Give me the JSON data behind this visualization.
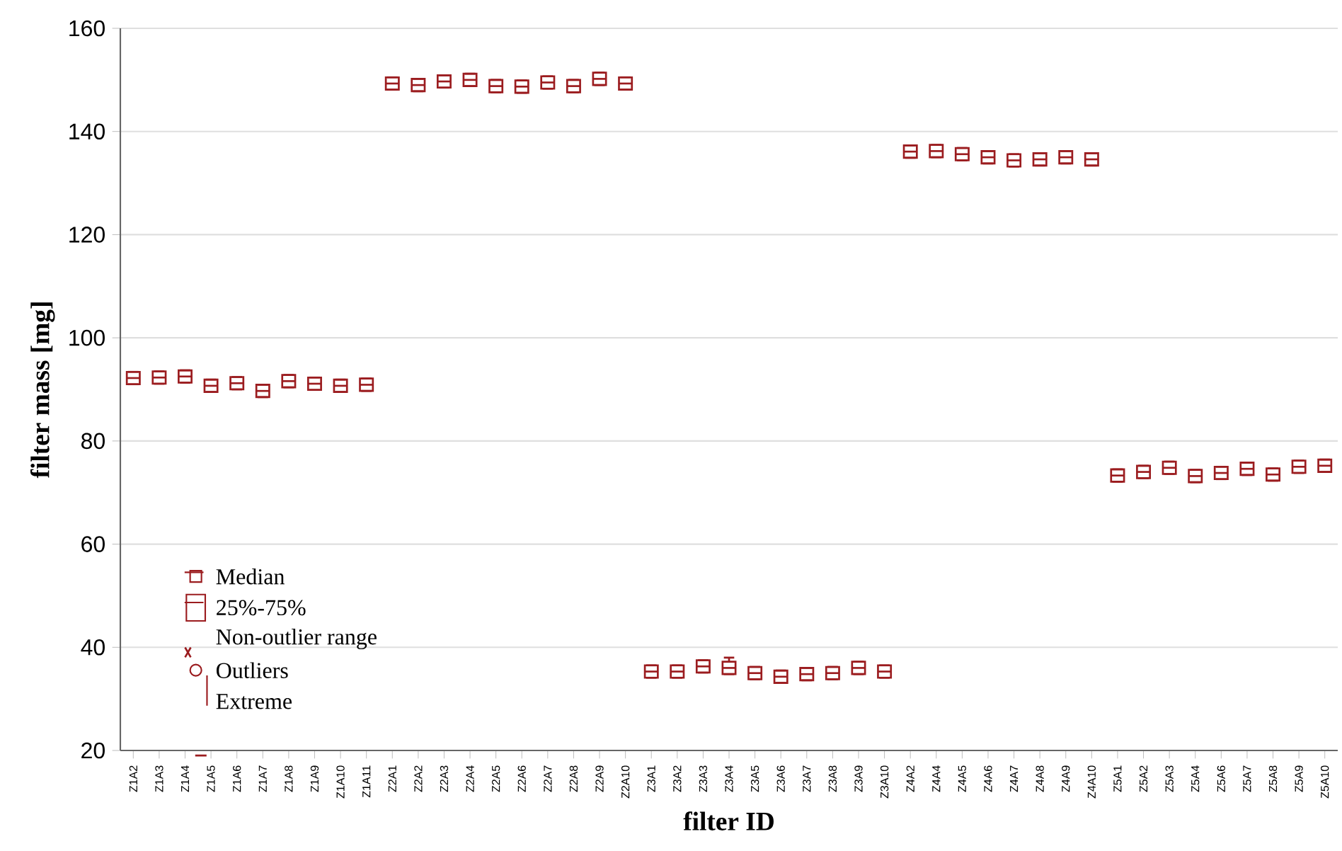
{
  "chart_data": {
    "type": "box",
    "xlabel": "filter ID",
    "ylabel": "filter mass [mg]",
    "categories": [
      "Z1A2",
      "Z1A3",
      "Z1A4",
      "Z1A5",
      "Z1A6",
      "Z1A7",
      "Z1A8",
      "Z1A9",
      "Z1A10",
      "Z1A11",
      "Z2A1",
      "Z2A2",
      "Z2A3",
      "Z2A4",
      "Z2A5",
      "Z2A6",
      "Z2A7",
      "Z2A8",
      "Z2A9",
      "Z2A10",
      "Z3A1",
      "Z3A2",
      "Z3A3",
      "Z3A4",
      "Z3A5",
      "Z3A6",
      "Z3A7",
      "Z3A8",
      "Z3A9",
      "Z3A10",
      "Z4A2",
      "Z4A4",
      "Z4A5",
      "Z4A6",
      "Z4A7",
      "Z4A8",
      "Z4A9",
      "Z4A10",
      "Z5A1",
      "Z5A2",
      "Z5A3",
      "Z5A4",
      "Z5A6",
      "Z5A7",
      "Z5A8",
      "Z5A9",
      "Z5A10"
    ],
    "ylim": [
      20,
      160
    ],
    "yticks": [
      20,
      40,
      60,
      80,
      100,
      120,
      140,
      160
    ],
    "grid": "y",
    "annotations": [
      "Median",
      "25%-75%",
      "Non-outlier range",
      "Outliers",
      "Extreme"
    ],
    "series": [
      {
        "color": "#9b1c1f",
        "boxes": [
          {
            "low": 91.0,
            "q1": 91.0,
            "median": 92.2,
            "q3": 93.4,
            "high": 93.4
          },
          {
            "low": 91.1,
            "q1": 91.1,
            "median": 92.3,
            "q3": 93.5,
            "high": 93.5
          },
          {
            "low": 91.3,
            "q1": 91.3,
            "median": 92.5,
            "q3": 93.7,
            "high": 93.7
          },
          {
            "low": 89.5,
            "q1": 89.5,
            "median": 90.7,
            "q3": 91.9,
            "high": 91.9
          },
          {
            "low": 90.0,
            "q1": 90.0,
            "median": 91.2,
            "q3": 92.4,
            "high": 92.4
          },
          {
            "low": 88.5,
            "q1": 88.5,
            "median": 89.7,
            "q3": 90.9,
            "high": 90.9
          },
          {
            "low": 90.4,
            "q1": 90.4,
            "median": 91.6,
            "q3": 92.8,
            "high": 92.8
          },
          {
            "low": 89.9,
            "q1": 89.9,
            "median": 91.1,
            "q3": 92.3,
            "high": 92.3
          },
          {
            "low": 89.5,
            "q1": 89.5,
            "median": 90.7,
            "q3": 91.9,
            "high": 91.9
          },
          {
            "low": 89.7,
            "q1": 89.7,
            "median": 90.9,
            "q3": 92.1,
            "high": 92.1
          },
          {
            "low": 148.1,
            "q1": 148.1,
            "median": 149.3,
            "q3": 150.5,
            "high": 150.5
          },
          {
            "low": 147.8,
            "q1": 147.8,
            "median": 149.0,
            "q3": 150.2,
            "high": 150.2
          },
          {
            "low": 148.5,
            "q1": 148.5,
            "median": 149.7,
            "q3": 150.9,
            "high": 150.9
          },
          {
            "low": 148.8,
            "q1": 148.8,
            "median": 150.0,
            "q3": 151.2,
            "high": 151.2
          },
          {
            "low": 147.6,
            "q1": 147.6,
            "median": 148.8,
            "q3": 150.0,
            "high": 150.0
          },
          {
            "low": 147.5,
            "q1": 147.5,
            "median": 148.7,
            "q3": 149.9,
            "high": 149.9
          },
          {
            "low": 148.3,
            "q1": 148.3,
            "median": 149.5,
            "q3": 150.7,
            "high": 150.7
          },
          {
            "low": 147.6,
            "q1": 147.6,
            "median": 148.8,
            "q3": 150.0,
            "high": 150.0
          },
          {
            "low": 149.0,
            "q1": 149.0,
            "median": 150.2,
            "q3": 151.4,
            "high": 151.4
          },
          {
            "low": 148.1,
            "q1": 148.1,
            "median": 149.3,
            "q3": 150.5,
            "high": 150.5
          },
          {
            "low": 34.1,
            "q1": 34.1,
            "median": 35.3,
            "q3": 36.5,
            "high": 36.5
          },
          {
            "low": 34.1,
            "q1": 34.1,
            "median": 35.3,
            "q3": 36.5,
            "high": 36.5
          },
          {
            "low": 35.1,
            "q1": 35.1,
            "median": 36.3,
            "q3": 37.5,
            "high": 37.5
          },
          {
            "low": 34.8,
            "q1": 34.8,
            "median": 36.0,
            "q3": 37.2,
            "high": 38.0
          },
          {
            "low": 33.8,
            "q1": 33.8,
            "median": 35.0,
            "q3": 36.2,
            "high": 36.2
          },
          {
            "low": 33.1,
            "q1": 33.1,
            "median": 34.3,
            "q3": 35.5,
            "high": 35.5
          },
          {
            "low": 33.6,
            "q1": 33.6,
            "median": 34.8,
            "q3": 36.0,
            "high": 36.0
          },
          {
            "low": 33.8,
            "q1": 33.8,
            "median": 35.0,
            "q3": 36.2,
            "high": 36.2
          },
          {
            "low": 34.8,
            "q1": 34.8,
            "median": 36.0,
            "q3": 37.2,
            "high": 37.2
          },
          {
            "low": 34.1,
            "q1": 34.1,
            "median": 35.3,
            "q3": 36.5,
            "high": 36.5
          },
          {
            "low": 134.9,
            "q1": 134.9,
            "median": 136.1,
            "q3": 137.3,
            "high": 137.3
          },
          {
            "low": 135.0,
            "q1": 135.0,
            "median": 136.2,
            "q3": 137.4,
            "high": 137.4
          },
          {
            "low": 134.4,
            "q1": 134.4,
            "median": 135.6,
            "q3": 136.8,
            "high": 136.8
          },
          {
            "low": 133.8,
            "q1": 133.8,
            "median": 135.0,
            "q3": 136.2,
            "high": 136.2
          },
          {
            "low": 133.2,
            "q1": 133.2,
            "median": 134.4,
            "q3": 135.6,
            "high": 135.6
          },
          {
            "low": 133.4,
            "q1": 133.4,
            "median": 134.6,
            "q3": 135.8,
            "high": 135.8
          },
          {
            "low": 133.8,
            "q1": 133.8,
            "median": 135.0,
            "q3": 136.2,
            "high": 136.2
          },
          {
            "low": 133.4,
            "q1": 133.4,
            "median": 134.6,
            "q3": 135.8,
            "high": 135.8
          },
          {
            "low": 72.1,
            "q1": 72.1,
            "median": 73.3,
            "q3": 74.5,
            "high": 74.5
          },
          {
            "low": 72.8,
            "q1": 72.8,
            "median": 74.0,
            "q3": 75.2,
            "high": 75.2
          },
          {
            "low": 73.6,
            "q1": 73.6,
            "median": 74.8,
            "q3": 76.0,
            "high": 76.0
          },
          {
            "low": 72.0,
            "q1": 72.0,
            "median": 73.2,
            "q3": 74.4,
            "high": 74.4
          },
          {
            "low": 72.6,
            "q1": 72.6,
            "median": 73.8,
            "q3": 75.0,
            "high": 75.0
          },
          {
            "low": 73.4,
            "q1": 73.4,
            "median": 74.6,
            "q3": 75.8,
            "high": 75.8
          },
          {
            "low": 72.3,
            "q1": 72.3,
            "median": 73.5,
            "q3": 74.7,
            "high": 74.7
          },
          {
            "low": 73.8,
            "q1": 73.8,
            "median": 75.0,
            "q3": 76.2,
            "high": 76.2
          },
          {
            "low": 74.0,
            "q1": 74.0,
            "median": 75.2,
            "q3": 76.4,
            "high": 76.4
          }
        ]
      }
    ]
  }
}
